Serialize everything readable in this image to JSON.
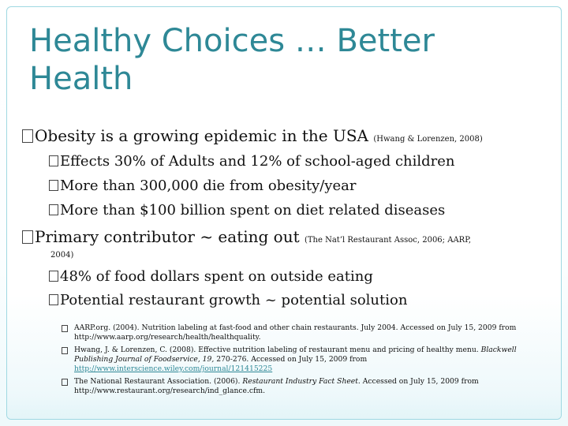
{
  "slide": {
    "title": "Healthy Choices … Better Health",
    "bullets": {
      "b1": {
        "text": "Obesity is a growing epidemic in the USA",
        "cite": "(Hwang & Lorenzen, 2008)"
      },
      "b1_1": "Effects 30% of Adults and 12% of school-aged children",
      "b1_2": "More than 300,000 die from obesity/year",
      "b1_3": "More than $100 billion spent on diet related diseases",
      "b2": {
        "text": "Primary contributor ~ eating out",
        "cite_line1": "(The Nat’l Restaurant Assoc, 2006; AARP,",
        "cite_line2": "2004)"
      },
      "b2_1": "48% of food dollars spent on outside eating",
      "b2_2": "Potential restaurant growth ~ potential solution"
    },
    "references": {
      "r1": "AARP.org. (2004). Nutrition labeling at fast-food and other chain restaurants. July 2004. Accessed on July 15, 2009 from http://www.aarp.org/research/health/healthquality.",
      "r2_a": "Hwang, J. & Lorenzen, C. (2008). Effective nutrition labeling of restaurant menu and pricing of healthy menu. ",
      "r2_b": "Blackwell Publishing Journal of Foodservice, 19,",
      "r2_c": " 270-276. Accessed on July 15, 2009 from ",
      "r2_link": "http://www.interscience.wiley.com/journal/121415225",
      "r3_a": "The National Restaurant Association. (2006). ",
      "r3_b": "Restaurant Industry Fact Sheet.",
      "r3_c": " Accessed on July 15, 2009 from http://www.restaurant.org/research/ind_glance.cfm."
    }
  }
}
